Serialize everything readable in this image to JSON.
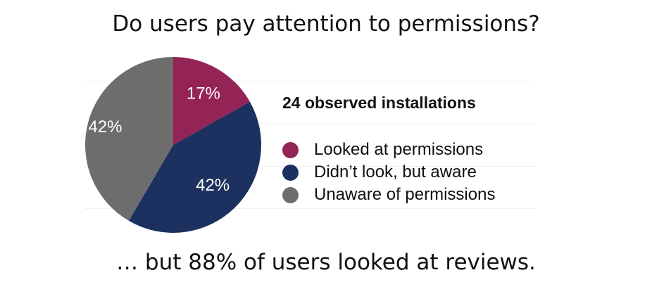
{
  "slide": {
    "title": "Do users pay attention to permissions?",
    "footer": "… but 88% of users looked at reviews."
  },
  "chart_data": {
    "type": "pie",
    "title": "24 observed installations",
    "legend_position": "right",
    "start_angle_deg": 0,
    "direction": "clockwise",
    "slices": [
      {
        "label": "Looked at permissions",
        "value": 17,
        "display": "17%",
        "color": "#952456"
      },
      {
        "label": "Didn’t look, but aware",
        "value": 42,
        "display": "42%",
        "color": "#1c3160"
      },
      {
        "label": "Unaware of permissions",
        "value": 42,
        "display": "42%",
        "color": "#6d6d6d"
      }
    ]
  }
}
